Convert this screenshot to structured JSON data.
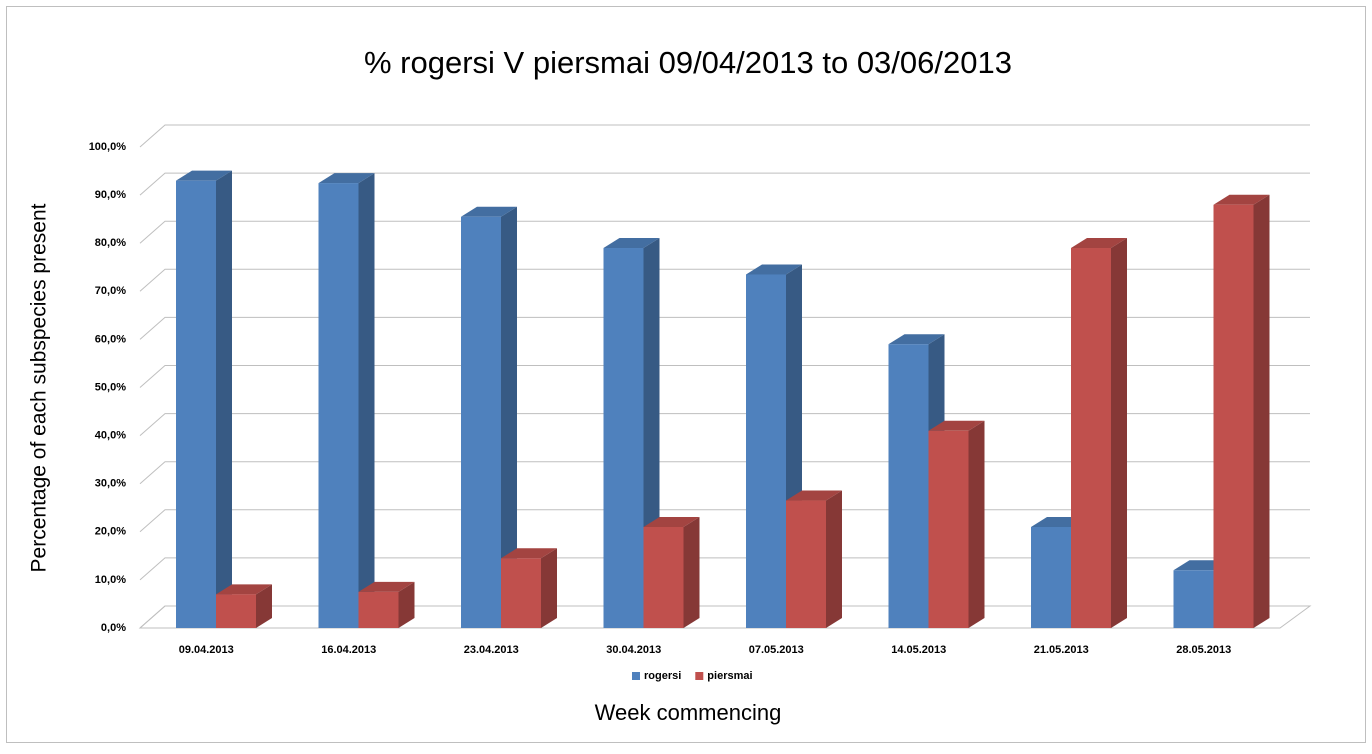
{
  "chart_data": {
    "type": "bar3d",
    "title": "% rogersi V piersmai 09/04/2013 to 03/06/2013",
    "xlabel": "Week commencing",
    "ylabel": "Percentage of each subspecies present",
    "categories": [
      "09.04.2013",
      "16.04.2013",
      "23.04.2013",
      "30.04.2013",
      "07.05.2013",
      "14.05.2013",
      "21.05.2013",
      "28.05.2013"
    ],
    "series": [
      {
        "name": "rogersi",
        "color": "#4f81bd",
        "values": [
          93,
          92.5,
          85.5,
          79,
          73.5,
          59,
          21,
          12
        ]
      },
      {
        "name": "piersmai",
        "color": "#c0504d",
        "values": [
          7,
          7.5,
          14.5,
          21,
          26.5,
          41,
          79,
          88
        ]
      }
    ],
    "ylim": [
      0,
      100
    ],
    "yticks": [
      {
        "value": 0,
        "label": "0,0%"
      },
      {
        "value": 10,
        "label": "10,0%"
      },
      {
        "value": 20,
        "label": "20,0%"
      },
      {
        "value": 30,
        "label": "30,0%"
      },
      {
        "value": 40,
        "label": "40,0%"
      },
      {
        "value": 50,
        "label": "50,0%"
      },
      {
        "value": 60,
        "label": "60,0%"
      },
      {
        "value": 70,
        "label": "70,0%"
      },
      {
        "value": 80,
        "label": "80,0%"
      },
      {
        "value": 90,
        "label": "90,0%"
      },
      {
        "value": 100,
        "label": "100,0%"
      }
    ],
    "grid": true,
    "legend": "bottom"
  }
}
